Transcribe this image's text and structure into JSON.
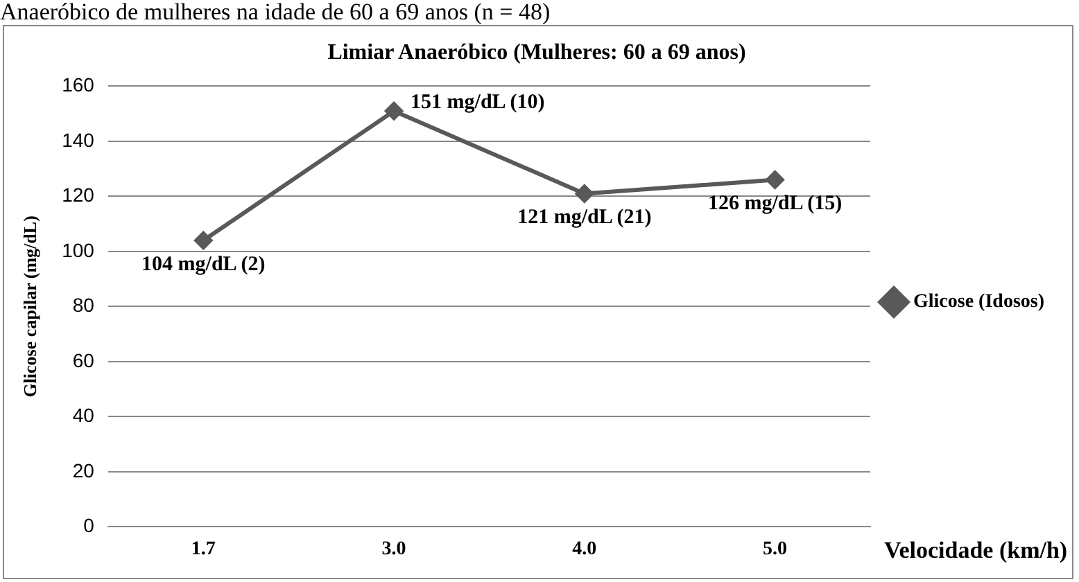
{
  "chart_data": {
    "type": "line",
    "title": "Limiar Anaeróbico (Mulheres: 60 a 69 anos)",
    "xlabel": "Velocidade (km/h)",
    "ylabel": "Glicose capilar (mg/dL)",
    "annotations": [
      "Anaeróbico de mulheres na idade de 60 a 69 anos (n = 48)"
    ],
    "categories": [
      "1.7",
      "3.0",
      "4.0",
      "5.0"
    ],
    "series": [
      {
        "name": "Glicose (Idosos)",
        "color": "#595959",
        "values": [
          104,
          151,
          121,
          126
        ],
        "value_labels": [
          "104 mg/dL (2)",
          "151 mg/dL (10)",
          "121 mg/dL (21)",
          "126 mg/dL (15)"
        ]
      }
    ],
    "ylim": [
      0,
      160
    ],
    "yticks": [
      0,
      20,
      40,
      60,
      80,
      100,
      120,
      140,
      160
    ],
    "grid": "y",
    "legend": "right",
    "marker": "diamond",
    "line_style": "solid"
  }
}
